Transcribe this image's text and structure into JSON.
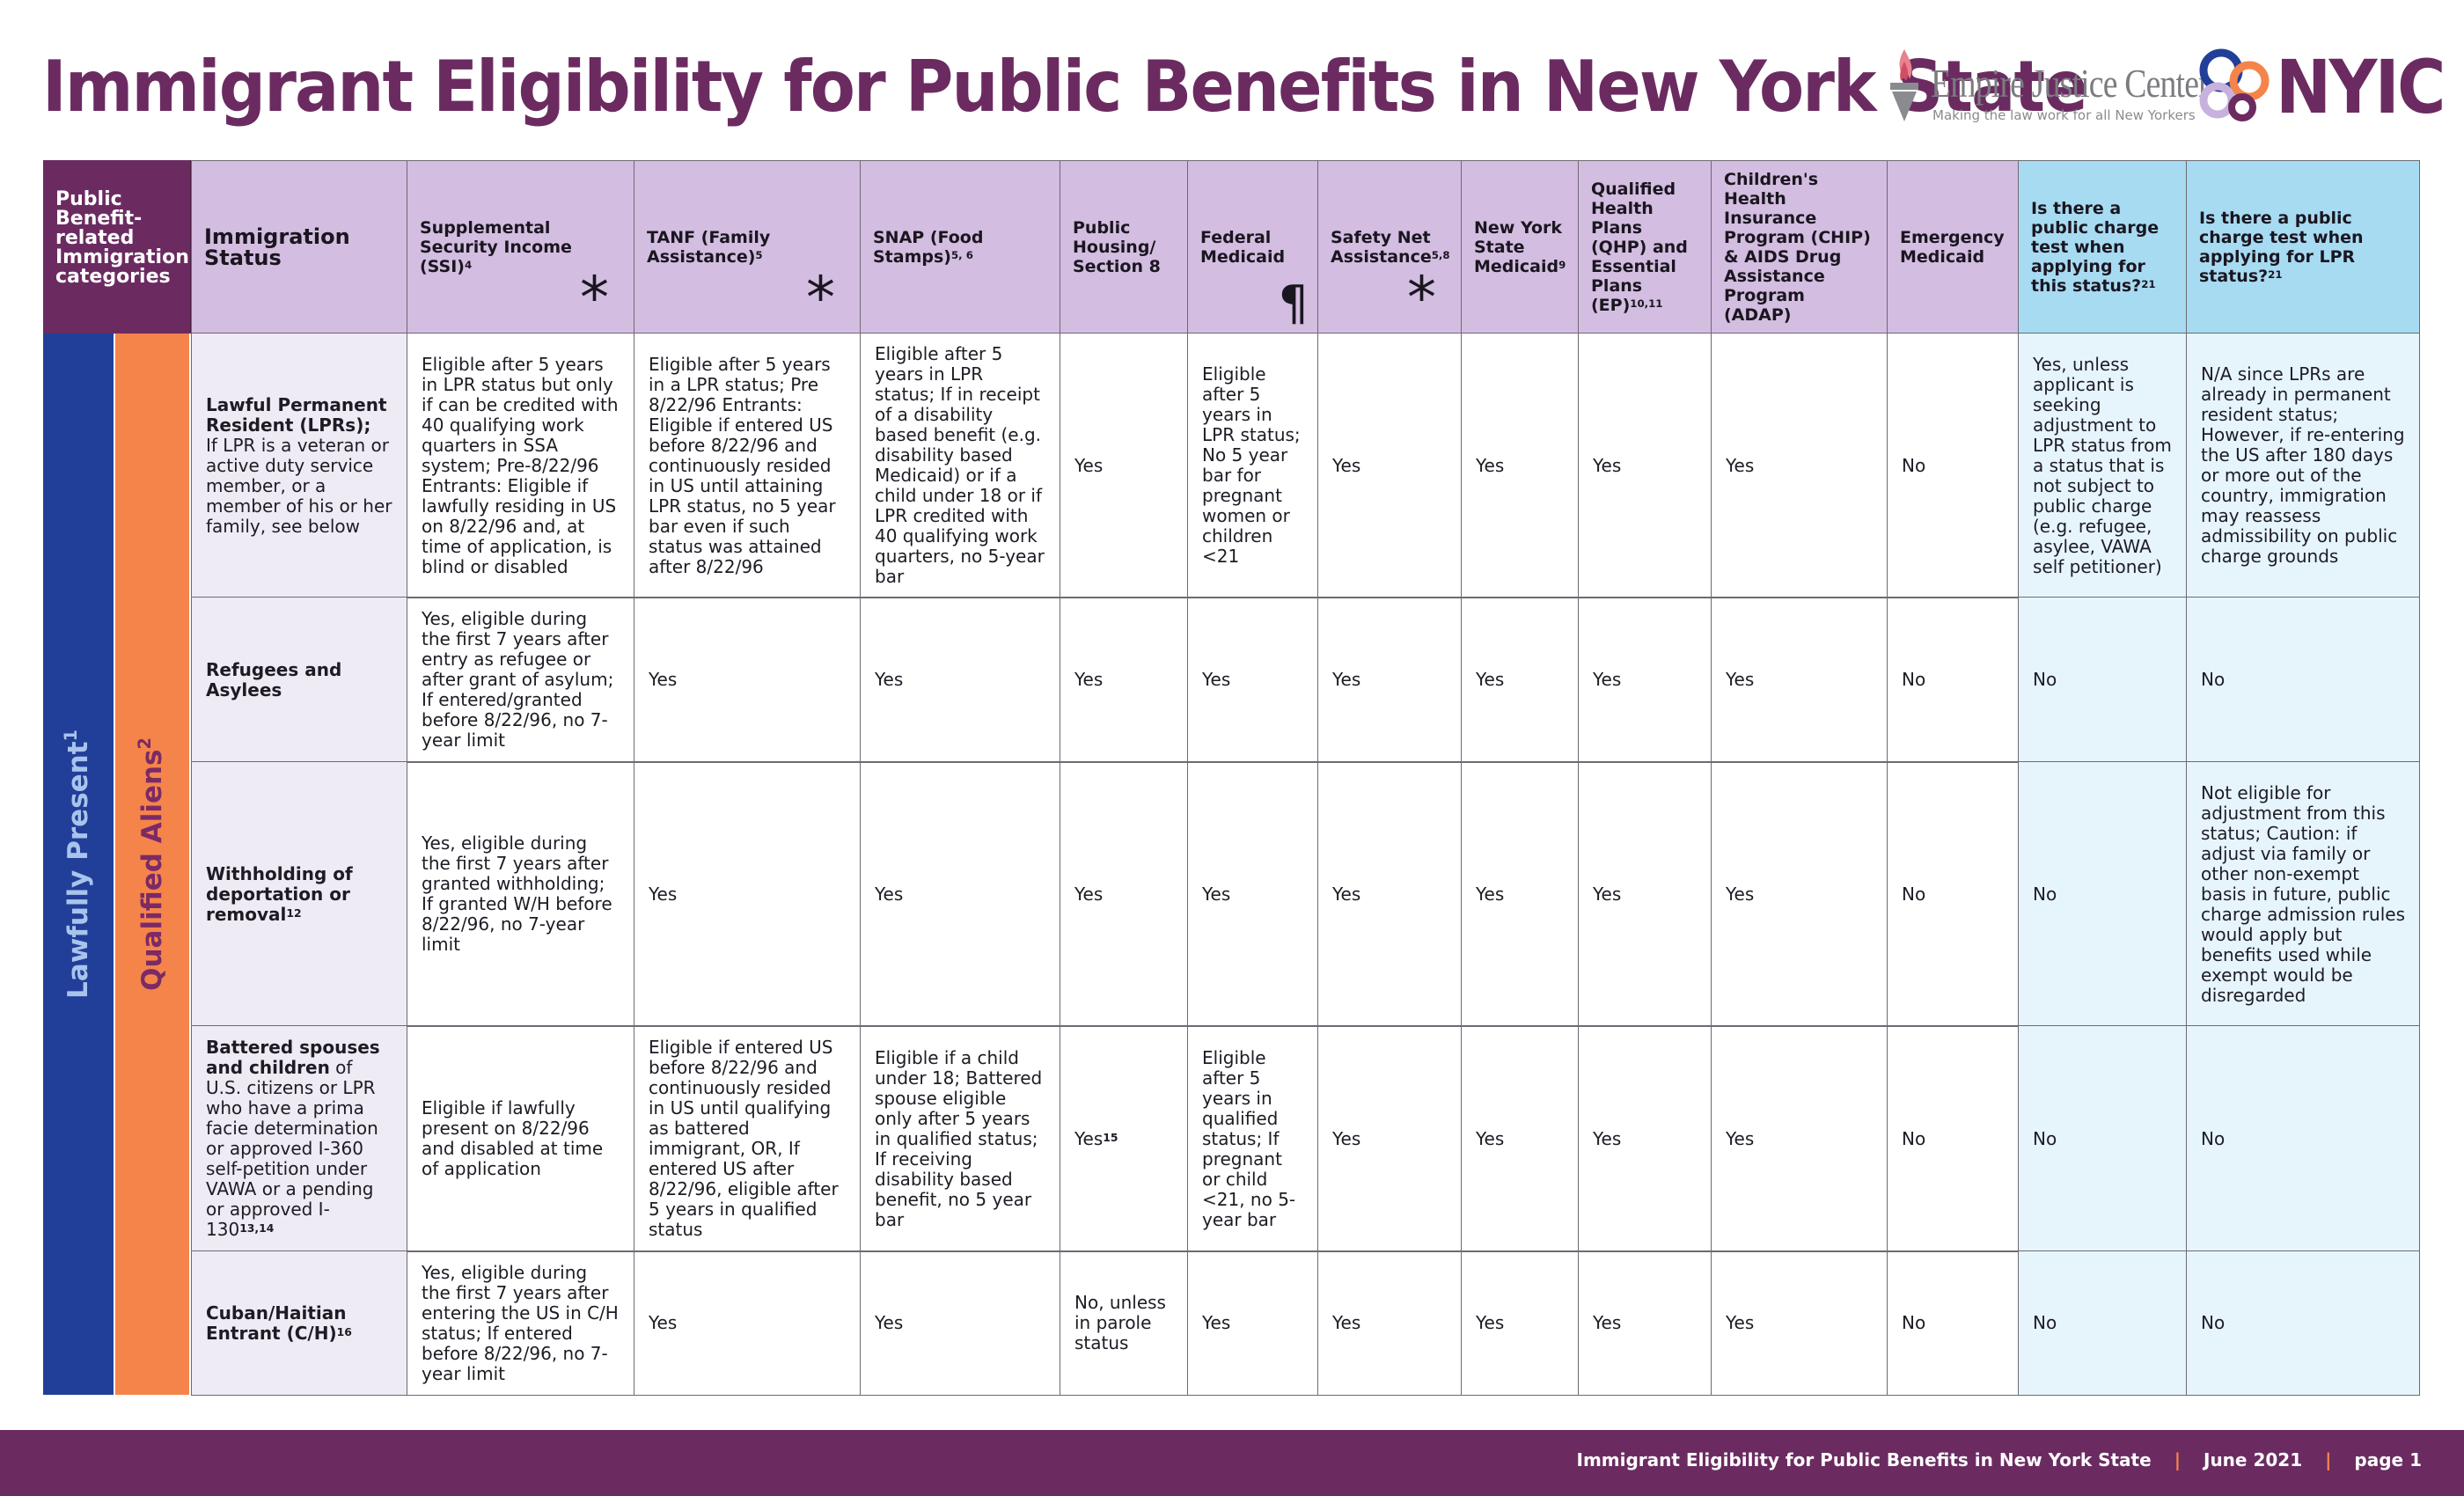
{
  "title": "Immigrant Eligibility for Public Benefits in New York State",
  "logos": {
    "ejc_name": "Empire Justice Center",
    "ejc_tagline": "Making the law work for all New Yorkers",
    "nyic_name": "NYIC"
  },
  "bands": {
    "lawfully_present": "Lawfully Present",
    "lawfully_present_sup": "1",
    "qualified_aliens": "Qualified Aliens",
    "qualified_aliens_sup": "2"
  },
  "corner_label": "Public Benefit-related Immigration categories",
  "headers": [
    {
      "label": "Immigration Status",
      "sup": ""
    },
    {
      "label": "Supplemental Security Income (SSI)",
      "sup": "4",
      "mark": "*"
    },
    {
      "label": "TANF (Family Assistance)",
      "sup": "5",
      "mark": "*"
    },
    {
      "label": "SNAP (Food Stamps)",
      "sup": "5, 6"
    },
    {
      "label": "Public Housing/ Section 8",
      "sup": ""
    },
    {
      "label": "Federal Medicaid",
      "sup": "",
      "mark": "¶"
    },
    {
      "label": "Safety Net Assistance",
      "sup": "5,8",
      "mark": "*"
    },
    {
      "label": "New York State Medicaid",
      "sup": "9"
    },
    {
      "label": "Qualified Health Plans (QHP) and Essential Plans (EP)",
      "sup": "10,11"
    },
    {
      "label": "Children's Health Insurance Program (CHIP) & AIDS Drug Assistance Program (ADAP)",
      "sup": ""
    },
    {
      "label": "Emergency Medicaid",
      "sup": ""
    },
    {
      "label": "Is there a public charge test when applying for this status?",
      "sup": "21"
    },
    {
      "label": "Is there a public charge test when applying for LPR status?",
      "sup": "21"
    }
  ],
  "rows": [
    {
      "status_bold": "Lawful Permanent Resident (LPRs);",
      "status_sup": "",
      "status_rest": "If LPR is a veteran or active duty service member, or a member of his or her family, see below",
      "cells": [
        "Eligible after 5 years in LPR status but only if can be credited with 40 qualifying work quarters in SSA system; Pre-8/22/96 Entrants: Eligible if lawfully residing in US on 8/22/96 and, at time of application, is blind or disabled",
        "Eligible after 5 years in a LPR status; Pre 8/22/96 Entrants: Eligible if entered US before 8/22/96 and continuously resided in US until attaining LPR status, no 5 year bar even if such status was attained after 8/22/96",
        "Eligible after 5 years in LPR status; If in receipt of a disability based benefit (e.g. disability based Medicaid) or if a child under 18 or if LPR credited with 40 qualifying work quarters, no 5-year bar",
        "Yes",
        "Eligible after 5 years in LPR status; No 5 year bar for pregnant women or children <21",
        "Yes",
        "Yes",
        "Yes",
        "Yes",
        "No",
        "Yes, unless applicant is seeking adjustment to LPR status from a status that is not subject to public charge (e.g. refugee, asylee, VAWA self petitioner)",
        "N/A since LPRs are already in permanent resident status; However, if re-entering the US after 180 days or more out of the country, immigration may reassess admissibility on public charge grounds"
      ]
    },
    {
      "status_bold": "Refugees and Asylees",
      "status_sup": "",
      "status_rest": "",
      "cells": [
        "Yes, eligible during the first 7 years after entry as refugee or after grant of asylum; If entered/granted before 8/22/96, no 7-year limit",
        "Yes",
        "Yes",
        "Yes",
        "Yes",
        "Yes",
        "Yes",
        "Yes",
        "Yes",
        "No",
        "No",
        "No"
      ]
    },
    {
      "status_bold": "Withholding of deportation or removal",
      "status_sup": "12",
      "status_rest": "",
      "cells": [
        "Yes, eligible during the first 7 years after granted withholding; If granted W/H before 8/22/96, no 7-year limit",
        "Yes",
        "Yes",
        "Yes",
        "Yes",
        "Yes",
        "Yes",
        "Yes",
        "Yes",
        "No",
        "No",
        "Not eligible for adjustment from this status; Caution: if adjust via family or other non-exempt basis in future, public charge admission rules would apply but benefits used while exempt would be disregarded"
      ]
    },
    {
      "status_bold": "Battered spouses and children",
      "status_sup": "13,14",
      "status_rest": " of U.S. citizens or LPR who have a prima facie determination or approved I-360 self-petition under VAWA or a pending or approved I-130",
      "cells": [
        "Eligible if lawfully present on 8/22/96 and disabled at time of application",
        "Eligible if entered US before 8/22/96 and continuously resided in US until qualifying as battered immigrant, OR, If entered US after 8/22/96, eligible after 5 years in qualified status",
        "Eligible if a child under 18; Battered spouse eligible only after 5 years in qualified status; If receiving disability based benefit, no 5 year bar",
        "Yes",
        "Eligible after 5 years in qualified status; If pregnant or child <21, no 5-year bar",
        "Yes",
        "Yes",
        "Yes",
        "Yes",
        "No",
        "No",
        "No"
      ],
      "housing_sup": "15"
    },
    {
      "status_bold": "Cuban/Haitian Entrant (C/H)",
      "status_sup": "16",
      "status_rest": "",
      "cells": [
        "Yes, eligible during the first 7 years after entering the US in C/H status; If entered before 8/22/96, no 7-year limit",
        "Yes",
        "Yes",
        "No, unless in parole status",
        "Yes",
        "Yes",
        "Yes",
        "Yes",
        "Yes",
        "No",
        "No",
        "No"
      ]
    }
  ],
  "footer": {
    "doc_title": "Immigrant Eligibility for Public Benefits in New York State",
    "date": "June 2021",
    "page": "page 1",
    "sep": "|"
  },
  "colors": {
    "brand_purple": "#6b2b61",
    "header_lavender": "#d3bde0",
    "header_blue": "#a7dbf2",
    "cell_blue": "#e6f5fc",
    "status_bg": "#efebf4",
    "lawfully_present_band": "#213f99",
    "qualified_aliens_band": "#f5844a"
  }
}
